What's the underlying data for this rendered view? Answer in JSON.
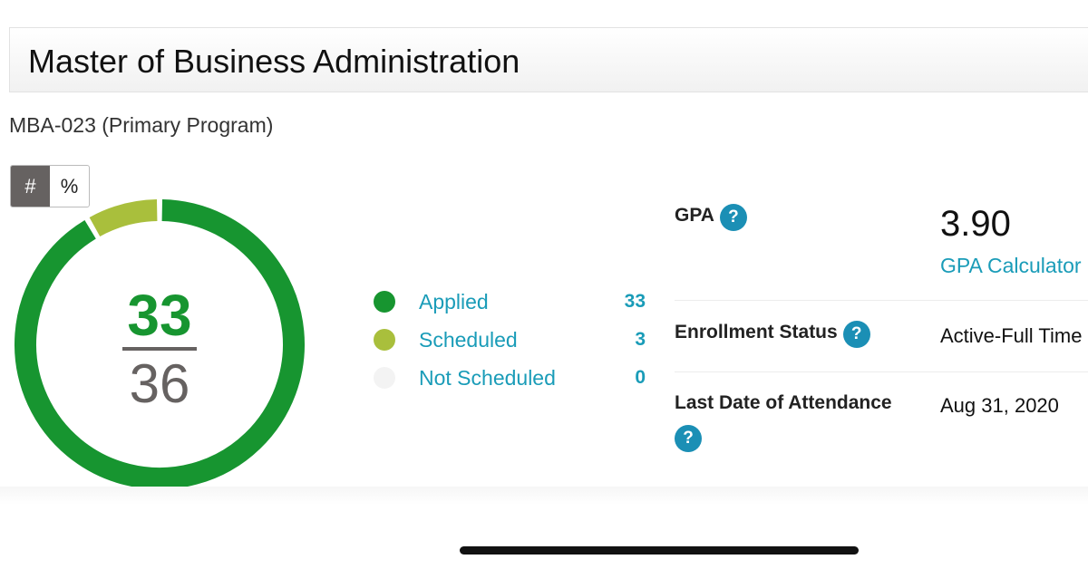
{
  "header": {
    "title": "Master of Business Administration",
    "program": "MBA-023 (Primary Program)"
  },
  "toggle": {
    "count_label": "#",
    "percent_label": "%",
    "selected": "#"
  },
  "chart_data": {
    "type": "pie",
    "variant": "donut",
    "categories": [
      "Applied",
      "Scheduled",
      "Not Scheduled"
    ],
    "values": [
      33,
      3,
      0
    ],
    "colors": [
      "#179530",
      "#a9bf3c",
      "#f3f3f3"
    ],
    "center": {
      "completed": "33",
      "total": "36"
    }
  },
  "legend": [
    {
      "label": "Applied",
      "count": "33",
      "color": "#179530"
    },
    {
      "label": "Scheduled",
      "count": "3",
      "color": "#a9bf3c"
    },
    {
      "label": "Not Scheduled",
      "count": "0",
      "color": "#f3f3f3"
    }
  ],
  "info": {
    "gpa": {
      "label": "GPA",
      "value": "3.90",
      "link": "GPA Calculator",
      "help_icon": "?"
    },
    "enrollment": {
      "label": "Enrollment Status",
      "value": "Active-Full Time",
      "help_icon": "?"
    },
    "attendance": {
      "label": "Last Date of Attendance",
      "value": "Aug 31, 2020",
      "help_icon": "?"
    }
  }
}
